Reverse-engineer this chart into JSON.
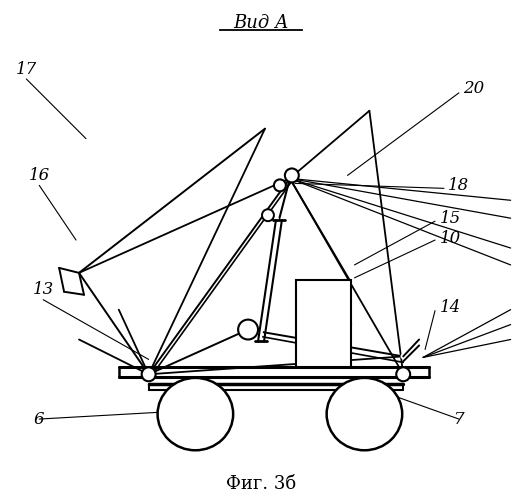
{
  "title": "Вид А",
  "caption": "Фиг. 3б",
  "background_color": "#ffffff",
  "line_color": "#000000",
  "figsize": [
    5.23,
    5.0
  ],
  "dpi": 100,
  "label_positions": {
    "17": [
      28,
      462,
      72,
      415
    ],
    "16": [
      42,
      348,
      75,
      307
    ],
    "13": [
      55,
      278,
      148,
      228
    ],
    "6": [
      48,
      148,
      215,
      140
    ],
    "7": [
      458,
      148,
      408,
      143
    ],
    "14": [
      450,
      220,
      420,
      207
    ],
    "10": [
      440,
      248,
      380,
      245
    ],
    "15": [
      437,
      270,
      352,
      262
    ],
    "18": [
      450,
      310,
      320,
      325
    ],
    "20": [
      470,
      418,
      348,
      380
    ]
  }
}
